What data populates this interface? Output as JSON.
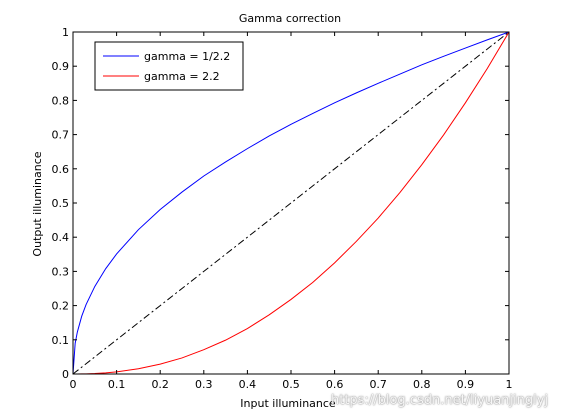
{
  "chart_data": {
    "type": "line",
    "title": "Gamma correction",
    "xlabel": "Input illuminance",
    "ylabel": "Output illuminance",
    "xlim": [
      0,
      1
    ],
    "ylim": [
      0,
      1
    ],
    "x_ticks": [
      "0",
      "0.1",
      "0.2",
      "0.3",
      "0.4",
      "0.5",
      "0.6",
      "0.7",
      "0.8",
      "0.9",
      "1"
    ],
    "y_ticks": [
      "0",
      "0.1",
      "0.2",
      "0.3",
      "0.4",
      "0.5",
      "0.6",
      "0.7",
      "0.8",
      "0.9",
      "1"
    ],
    "grid": false,
    "legend_position": "top-left",
    "x": [
      0,
      0.005,
      0.01,
      0.02,
      0.03,
      0.05,
      0.075,
      0.1,
      0.15,
      0.2,
      0.25,
      0.3,
      0.35,
      0.4,
      0.45,
      0.5,
      0.55,
      0.6,
      0.65,
      0.7,
      0.75,
      0.8,
      0.85,
      0.9,
      0.95,
      1.0
    ],
    "series": [
      {
        "name": "gamma = 1/2.2",
        "color": "#0000ff",
        "style": "solid",
        "values": [
          0,
          0.09,
          0.123,
          0.169,
          0.203,
          0.256,
          0.308,
          0.351,
          0.422,
          0.481,
          0.532,
          0.579,
          0.62,
          0.659,
          0.696,
          0.73,
          0.762,
          0.793,
          0.822,
          0.85,
          0.877,
          0.904,
          0.929,
          0.953,
          0.977,
          1.0
        ]
      },
      {
        "name": "gamma = 2.2",
        "color": "#ff0000",
        "style": "solid",
        "values": [
          0,
          1e-05,
          4e-05,
          0.0002,
          0.0005,
          0.0014,
          0.0034,
          0.0063,
          0.0154,
          0.029,
          0.047,
          0.071,
          0.099,
          0.133,
          0.173,
          0.218,
          0.268,
          0.325,
          0.388,
          0.456,
          0.531,
          0.612,
          0.699,
          0.793,
          0.893,
          1.0
        ]
      },
      {
        "color": "#000000",
        "style": "dash-dot",
        "values": [
          0,
          0.005,
          0.01,
          0.02,
          0.03,
          0.05,
          0.075,
          0.1,
          0.15,
          0.2,
          0.25,
          0.3,
          0.35,
          0.4,
          0.45,
          0.5,
          0.55,
          0.6,
          0.65,
          0.7,
          0.75,
          0.8,
          0.85,
          0.9,
          0.95,
          1.0
        ]
      }
    ]
  },
  "watermark": "https://blog.csdn.net/liyuanjinglyj"
}
